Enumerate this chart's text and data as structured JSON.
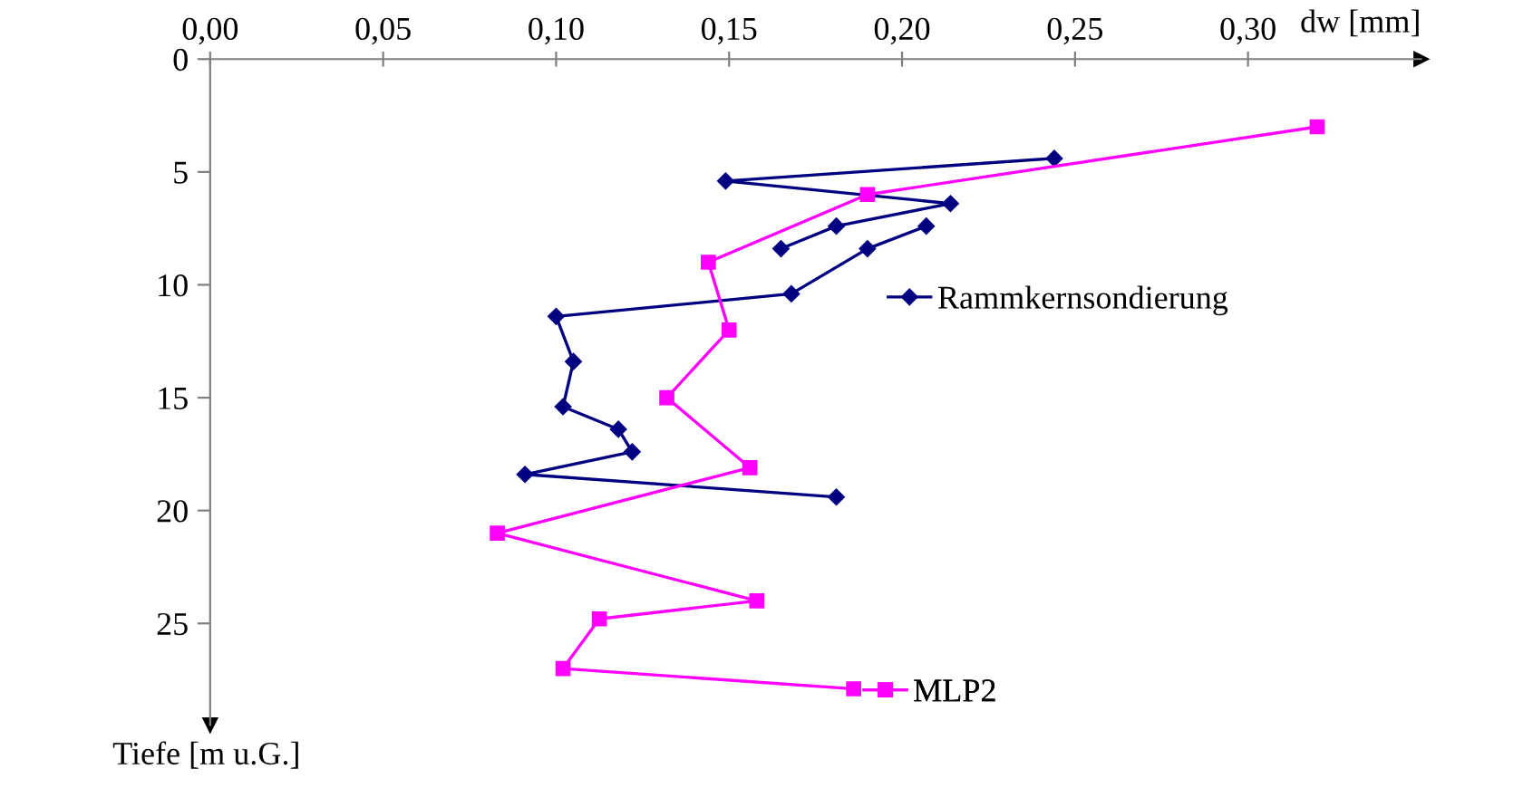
{
  "chart_data": {
    "type": "line",
    "xlabel": "dw [mm]",
    "ylabel": "Tiefe [m u.G.]",
    "xlim": [
      0,
      0.35
    ],
    "xticks": [
      {
        "value": 0,
        "label": "0,00"
      },
      {
        "value": 0.05,
        "label": "0,05"
      },
      {
        "value": 0.1,
        "label": "0,10"
      },
      {
        "value": 0.15,
        "label": "0,15"
      },
      {
        "value": 0.2,
        "label": "0,20"
      },
      {
        "value": 0.25,
        "label": "0,25"
      },
      {
        "value": 0.3,
        "label": "0,30"
      }
    ],
    "ylim": [
      29.5,
      0
    ],
    "yticks": [
      0,
      5,
      10,
      15,
      20,
      25
    ],
    "grid": false,
    "legend": "right",
    "line_style": "solid",
    "series": [
      {
        "name": "Rammkernsondierung",
        "color": "#000080",
        "marker": "diamond",
        "x": [
          0.244,
          0.149,
          0.214,
          0.181,
          0.165,
          null,
          0.207,
          0.19,
          0.168,
          0.1,
          0.105,
          0.102,
          0.118,
          0.122,
          0.091,
          0.181
        ],
        "values": [
          4.4,
          5.4,
          6.4,
          7.4,
          8.4,
          null,
          7.4,
          8.4,
          10.4,
          11.4,
          13.4,
          15.4,
          16.4,
          17.4,
          18.4,
          19.4
        ]
      },
      {
        "name": "MLP2",
        "color": "#ff00ff",
        "marker": "square",
        "x": [
          0.32,
          0.19,
          0.144,
          0.15,
          0.132,
          0.156,
          0.083,
          0.158,
          0.1125,
          0.102,
          0.186
        ],
        "values": [
          3.0,
          6.0,
          9.0,
          12.0,
          15.0,
          18.1,
          21.0,
          24.0,
          24.8,
          27.0,
          27.9
        ]
      }
    ]
  }
}
